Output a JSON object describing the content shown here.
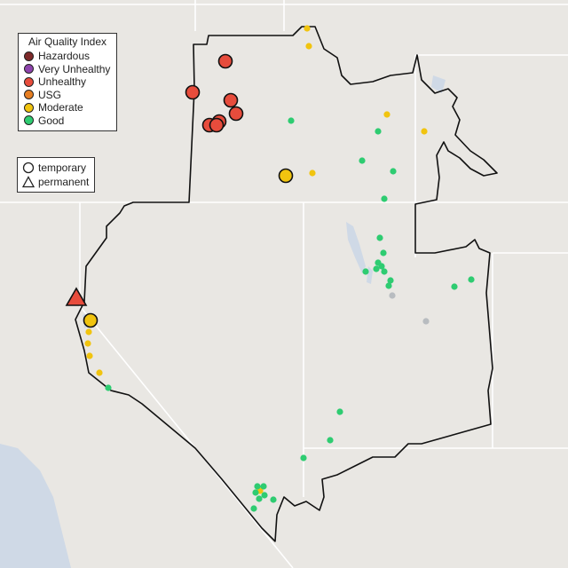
{
  "legend": {
    "title": "Air Quality Index",
    "categories": [
      {
        "label": "Hazardous",
        "color": "#7e2a2a"
      },
      {
        "label": "Very Unhealthy",
        "color": "#8e44ad"
      },
      {
        "label": "Unhealthy",
        "color": "#e74c3c"
      },
      {
        "label": "USG",
        "color": "#e67e22"
      },
      {
        "label": "Moderate",
        "color": "#f1c40f"
      },
      {
        "label": "Good",
        "color": "#2ecc71"
      }
    ]
  },
  "monitor_types": {
    "temporary": {
      "label": "temporary",
      "icon": "circle-icon"
    },
    "permanent": {
      "label": "permanent",
      "icon": "triangle-icon"
    }
  },
  "colors": {
    "background": "#e9e7e3",
    "border": "#111111",
    "state_lines": "#ffffff",
    "water": "#cfd9e6",
    "no_data": "#b8bcc0"
  }
}
